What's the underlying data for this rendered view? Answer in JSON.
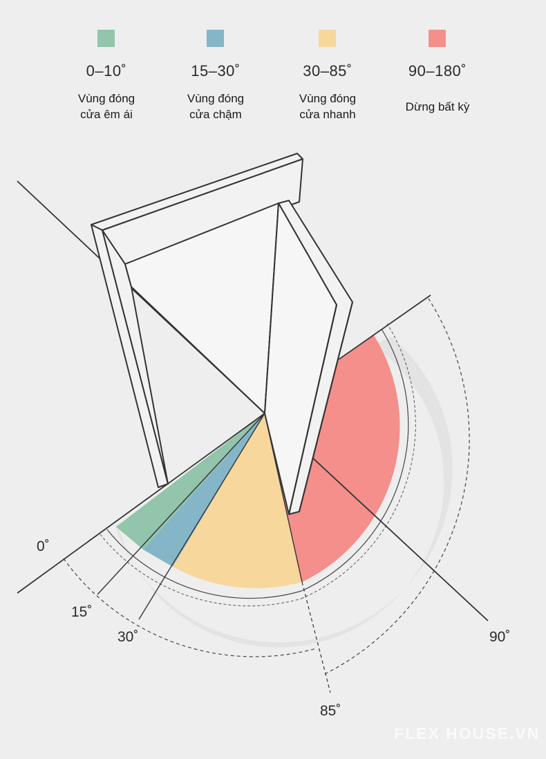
{
  "legend": [
    {
      "range": "0–10˚",
      "desc": "Vùng đóng cửa êm ái",
      "color": "#92c5ab"
    },
    {
      "range": "15–30˚",
      "desc": "Vùng đóng cửa chậm",
      "color": "#84b6c8"
    },
    {
      "range": "30–85˚",
      "desc": "Vùng đóng cửa nhanh",
      "color": "#f7d79c"
    },
    {
      "range": "90–180˚",
      "desc": "Dừng bất kỳ",
      "color": "#f48f8b"
    }
  ],
  "angles": {
    "a0": "0˚",
    "a15": "15˚",
    "a30": "30˚",
    "a85": "85˚",
    "a90": "90˚"
  },
  "watermark": "FLEX HOUSE.VN"
}
